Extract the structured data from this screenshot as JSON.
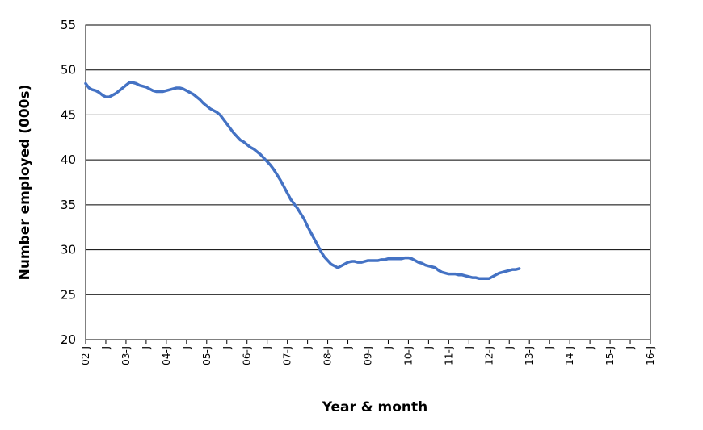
{
  "chart_data": {
    "type": "line",
    "title": "",
    "xlabel": "Year & month",
    "ylabel": "Number employed (000s)",
    "ylim": [
      20,
      55
    ],
    "yticks": [
      20,
      25,
      30,
      35,
      40,
      45,
      50,
      55
    ],
    "grid": "horizontal",
    "legend": "none",
    "x_tick_labels": [
      "02-J",
      "J",
      "03-J",
      "J",
      "04-J",
      "J",
      "05-J",
      "J",
      "06-J",
      "J",
      "07-J",
      "J",
      "08-J",
      "J",
      "09-J",
      "J",
      "10-J",
      "J",
      "11-J",
      "J",
      "12-J",
      "J",
      "13-J",
      "J",
      "14-J",
      "J",
      "15-J",
      "J",
      "16-J"
    ],
    "x_tick_months": [
      0,
      6,
      12,
      18,
      24,
      30,
      36,
      42,
      48,
      54,
      60,
      66,
      72,
      78,
      84,
      90,
      96,
      102,
      108,
      114,
      120,
      126,
      132,
      138,
      144,
      150,
      156,
      162,
      168
    ],
    "x_unit": "months since January 2002",
    "series": [
      {
        "name": "",
        "color": "#4472C4",
        "points": [
          [
            0,
            48.5
          ],
          [
            1,
            48.0
          ],
          [
            2,
            47.8
          ],
          [
            3,
            47.7
          ],
          [
            4,
            47.5
          ],
          [
            5,
            47.2
          ],
          [
            6,
            47.0
          ],
          [
            7,
            47.0
          ],
          [
            8,
            47.2
          ],
          [
            9,
            47.4
          ],
          [
            10,
            47.7
          ],
          [
            11,
            48.0
          ],
          [
            12,
            48.3
          ],
          [
            13,
            48.6
          ],
          [
            14,
            48.6
          ],
          [
            15,
            48.5
          ],
          [
            16,
            48.3
          ],
          [
            17,
            48.2
          ],
          [
            18,
            48.1
          ],
          [
            19,
            47.9
          ],
          [
            20,
            47.7
          ],
          [
            21,
            47.6
          ],
          [
            22,
            47.6
          ],
          [
            23,
            47.6
          ],
          [
            24,
            47.7
          ],
          [
            25,
            47.8
          ],
          [
            26,
            47.9
          ],
          [
            27,
            48.0
          ],
          [
            28,
            48.0
          ],
          [
            29,
            47.9
          ],
          [
            30,
            47.7
          ],
          [
            31,
            47.5
          ],
          [
            32,
            47.3
          ],
          [
            33,
            47.0
          ],
          [
            34,
            46.7
          ],
          [
            35,
            46.3
          ],
          [
            36,
            46.0
          ],
          [
            37,
            45.7
          ],
          [
            38,
            45.5
          ],
          [
            39,
            45.3
          ],
          [
            40,
            45.0
          ],
          [
            41,
            44.5
          ],
          [
            42,
            44.0
          ],
          [
            43,
            43.5
          ],
          [
            44,
            43.0
          ],
          [
            45,
            42.6
          ],
          [
            46,
            42.2
          ],
          [
            47,
            42.0
          ],
          [
            48,
            41.7
          ],
          [
            49,
            41.4
          ],
          [
            50,
            41.2
          ],
          [
            51,
            40.9
          ],
          [
            52,
            40.6
          ],
          [
            53,
            40.2
          ],
          [
            54,
            39.8
          ],
          [
            55,
            39.4
          ],
          [
            56,
            38.9
          ],
          [
            57,
            38.3
          ],
          [
            58,
            37.7
          ],
          [
            59,
            37.0
          ],
          [
            60,
            36.3
          ],
          [
            61,
            35.6
          ],
          [
            62,
            35.1
          ],
          [
            63,
            34.6
          ],
          [
            64,
            34.0
          ],
          [
            65,
            33.4
          ],
          [
            66,
            32.6
          ],
          [
            67,
            31.9
          ],
          [
            68,
            31.2
          ],
          [
            69,
            30.5
          ],
          [
            70,
            29.8
          ],
          [
            71,
            29.2
          ],
          [
            72,
            28.8
          ],
          [
            73,
            28.4
          ],
          [
            74,
            28.2
          ],
          [
            75,
            28.0
          ],
          [
            76,
            28.2
          ],
          [
            77,
            28.4
          ],
          [
            78,
            28.6
          ],
          [
            79,
            28.7
          ],
          [
            80,
            28.7
          ],
          [
            81,
            28.6
          ],
          [
            82,
            28.6
          ],
          [
            83,
            28.7
          ],
          [
            84,
            28.8
          ],
          [
            85,
            28.8
          ],
          [
            86,
            28.8
          ],
          [
            87,
            28.8
          ],
          [
            88,
            28.9
          ],
          [
            89,
            28.9
          ],
          [
            90,
            29.0
          ],
          [
            91,
            29.0
          ],
          [
            92,
            29.0
          ],
          [
            93,
            29.0
          ],
          [
            94,
            29.0
          ],
          [
            95,
            29.1
          ],
          [
            96,
            29.1
          ],
          [
            97,
            29.0
          ],
          [
            98,
            28.8
          ],
          [
            99,
            28.6
          ],
          [
            100,
            28.5
          ],
          [
            101,
            28.3
          ],
          [
            102,
            28.2
          ],
          [
            103,
            28.1
          ],
          [
            104,
            28.0
          ],
          [
            105,
            27.7
          ],
          [
            106,
            27.5
          ],
          [
            107,
            27.4
          ],
          [
            108,
            27.3
          ],
          [
            109,
            27.3
          ],
          [
            110,
            27.3
          ],
          [
            111,
            27.2
          ],
          [
            112,
            27.2
          ],
          [
            113,
            27.1
          ],
          [
            114,
            27.0
          ],
          [
            115,
            26.9
          ],
          [
            116,
            26.9
          ],
          [
            117,
            26.8
          ],
          [
            118,
            26.8
          ],
          [
            119,
            26.8
          ],
          [
            120,
            26.8
          ],
          [
            121,
            27.0
          ],
          [
            122,
            27.2
          ],
          [
            123,
            27.4
          ],
          [
            124,
            27.5
          ],
          [
            125,
            27.6
          ],
          [
            126,
            27.7
          ],
          [
            127,
            27.8
          ],
          [
            128,
            27.8
          ],
          [
            129,
            27.9
          ]
        ]
      }
    ]
  }
}
